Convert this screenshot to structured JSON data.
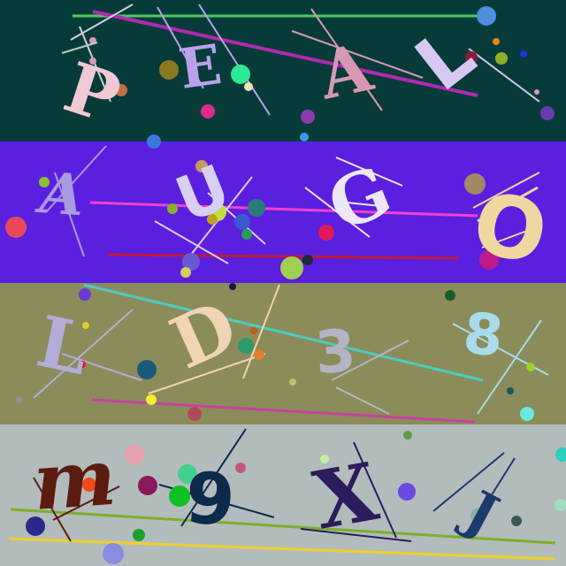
{
  "rows": [
    {
      "background": "#073b3a",
      "characters": [
        "P",
        "E",
        "A",
        "L"
      ]
    },
    {
      "background": "#5b1fe0",
      "characters": [
        "A",
        "U",
        "G",
        "O"
      ]
    },
    {
      "background": "#8b8c5a",
      "characters": [
        "L",
        "D",
        "3",
        "8"
      ]
    },
    {
      "background": "#b3bcbc",
      "characters": [
        "m",
        "9",
        "X",
        "J"
      ]
    }
  ],
  "colors": {
    "row1": [
      "#f0c8d6",
      "#b9a2ea",
      "#d898b4",
      "#d6c8f2"
    ],
    "row2": [
      "#a99ae2",
      "#d8d0f2",
      "#ece8f8",
      "#eed8a0"
    ],
    "row3": [
      "#b4acd8",
      "#f0d4b4",
      "#b4b4c4",
      "#a8dcec"
    ],
    "row4": [
      "#5c1c10",
      "#0c2a4c",
      "#2c1c5c",
      "#1c3a6c"
    ]
  }
}
